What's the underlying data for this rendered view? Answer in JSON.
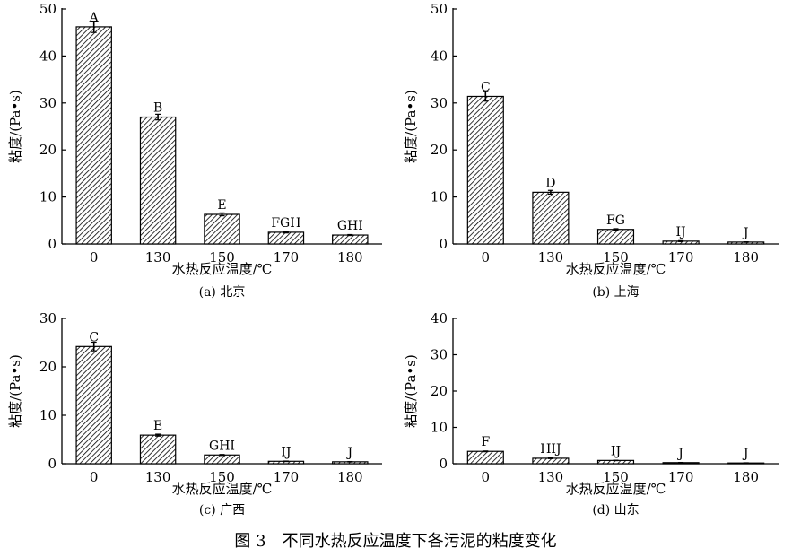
{
  "figure_caption": "图 3　不同水热反应温度下各污泥的粘度变化",
  "chart_data": [
    {
      "type": "bar",
      "subtitle": "(a) 北京",
      "xlabel": "水热反应温度/℃",
      "ylabel": "粘度/(Pa•s)",
      "categories": [
        "0",
        "130",
        "150",
        "170",
        "180"
      ],
      "values": [
        46.2,
        27.0,
        6.3,
        2.5,
        1.9
      ],
      "errors": [
        1.2,
        0.6,
        0.3,
        0.15,
        0.1
      ],
      "labels": [
        "A",
        "B",
        "E",
        "FGH",
        "GHI"
      ],
      "ylim": [
        0,
        50
      ],
      "yticks": [
        0,
        10,
        20,
        30,
        40,
        50
      ],
      "grid": false,
      "hatch": "diagonal"
    },
    {
      "type": "bar",
      "subtitle": "(b) 上海",
      "xlabel": "水热反应温度/℃",
      "ylabel": "粘度/(Pa•s)",
      "categories": [
        "0",
        "130",
        "150",
        "170",
        "180"
      ],
      "values": [
        31.4,
        11.0,
        3.1,
        0.6,
        0.4
      ],
      "errors": [
        1.0,
        0.4,
        0.15,
        0.1,
        0.05
      ],
      "labels": [
        "C",
        "D",
        "FG",
        "IJ",
        "J"
      ],
      "ylim": [
        0,
        50
      ],
      "yticks": [
        0,
        10,
        20,
        30,
        40,
        50
      ],
      "grid": false,
      "hatch": "diagonal"
    },
    {
      "type": "bar",
      "subtitle": "(c) 广西",
      "xlabel": "水热反应温度/℃",
      "ylabel": "粘度/(Pa•s)",
      "categories": [
        "0",
        "130",
        "150",
        "170",
        "180"
      ],
      "values": [
        24.2,
        5.9,
        1.8,
        0.5,
        0.4
      ],
      "errors": [
        0.9,
        0.2,
        0.1,
        0.05,
        0.05
      ],
      "labels": [
        "C",
        "E",
        "GHI",
        "IJ",
        "J"
      ],
      "ylim": [
        0,
        30
      ],
      "yticks": [
        0,
        10,
        20,
        30
      ],
      "grid": false,
      "hatch": "diagonal"
    },
    {
      "type": "bar",
      "subtitle": "(d) 山东",
      "xlabel": "水热反应温度/℃",
      "ylabel": "粘度/(Pa•s)",
      "categories": [
        "0",
        "130",
        "150",
        "170",
        "180"
      ],
      "values": [
        3.4,
        1.5,
        0.9,
        0.3,
        0.2
      ],
      "errors": [
        0.1,
        0.1,
        0.05,
        0.05,
        0.05
      ],
      "labels": [
        "F",
        "HIJ",
        "IJ",
        "J",
        "J"
      ],
      "ylim": [
        0,
        40
      ],
      "yticks": [
        0,
        10,
        20,
        30,
        40
      ],
      "grid": false,
      "hatch": "diagonal"
    }
  ]
}
